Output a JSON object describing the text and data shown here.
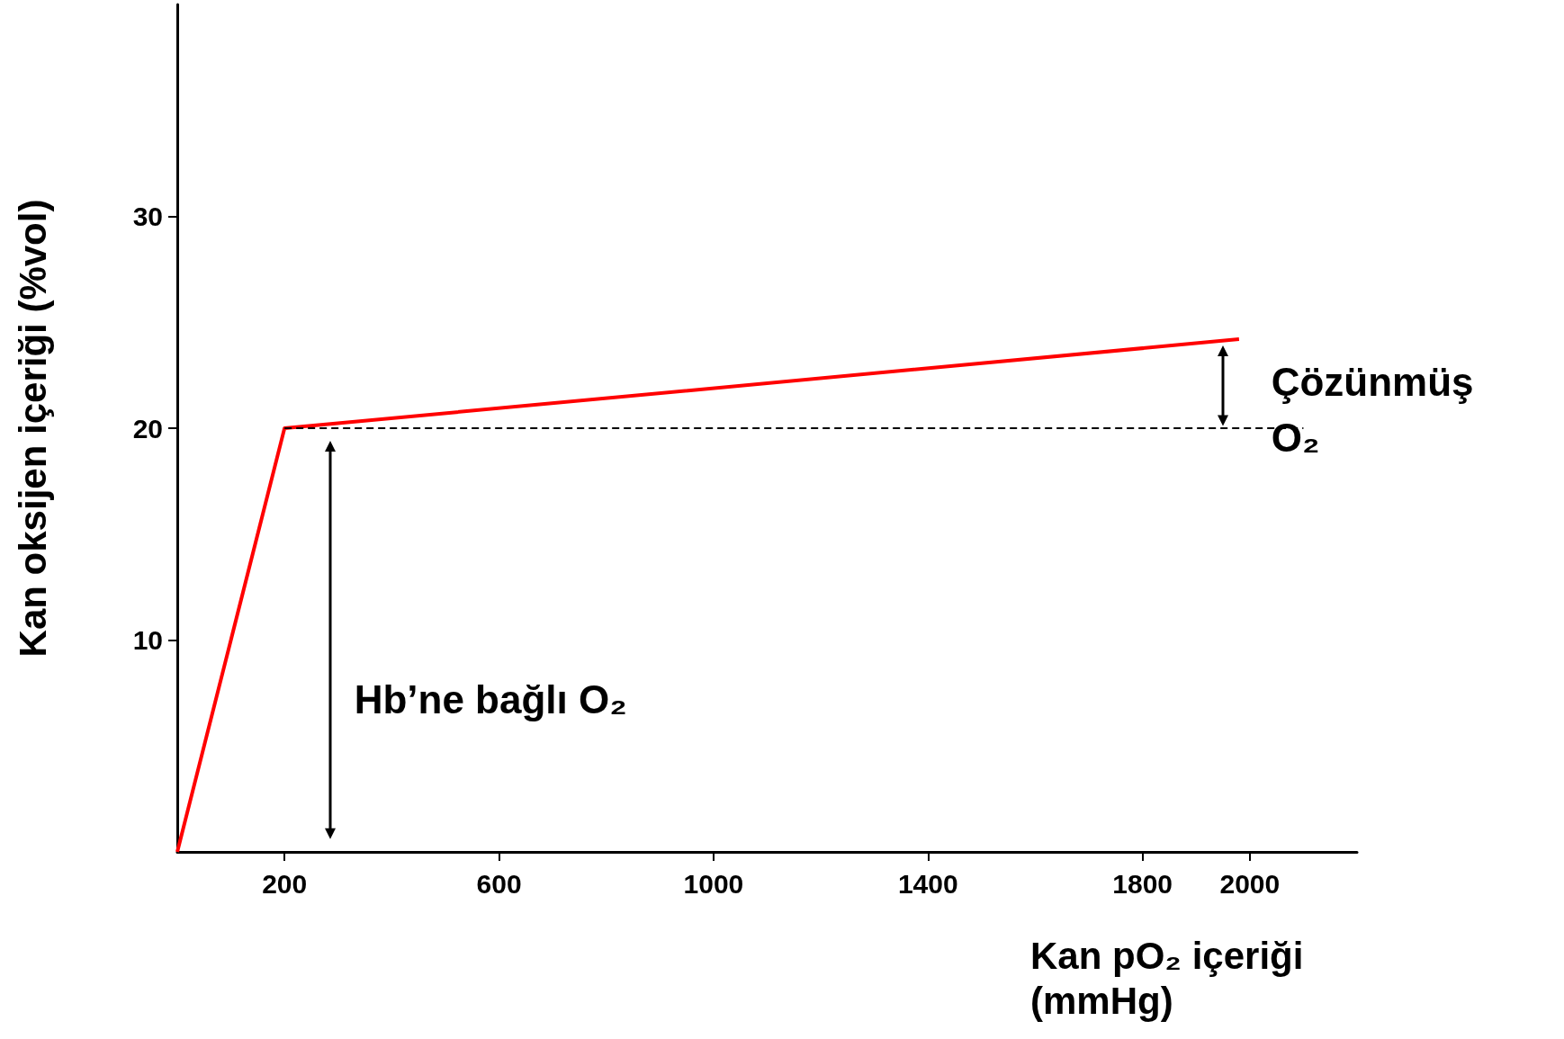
{
  "chart_data": {
    "type": "line",
    "xlabel": "Kan pO₂ içeriği\n(mmHg)",
    "ylabel": "Kan oksijen içeriği (%vol)",
    "series": [
      {
        "color": "#ff0000",
        "x": [
          0,
          200,
          1980
        ],
        "values": [
          0,
          20,
          24.2
        ],
        "line_style": "solid"
      },
      {
        "color": "#000000",
        "x": [
          200,
          2100
        ],
        "values": [
          20,
          20
        ],
        "line_style": "dashed"
      }
    ],
    "xlim": [
      0,
      2200
    ],
    "xticks": [
      200,
      600,
      1000,
      1400,
      1800,
      2000
    ],
    "ylim": [
      0,
      40
    ],
    "yticks": [
      10,
      20,
      30
    ],
    "grid": false,
    "marker": "none",
    "annotations": [
      "Hb’ne bağlı O₂",
      "Çözünmüş\nO₂"
    ]
  }
}
